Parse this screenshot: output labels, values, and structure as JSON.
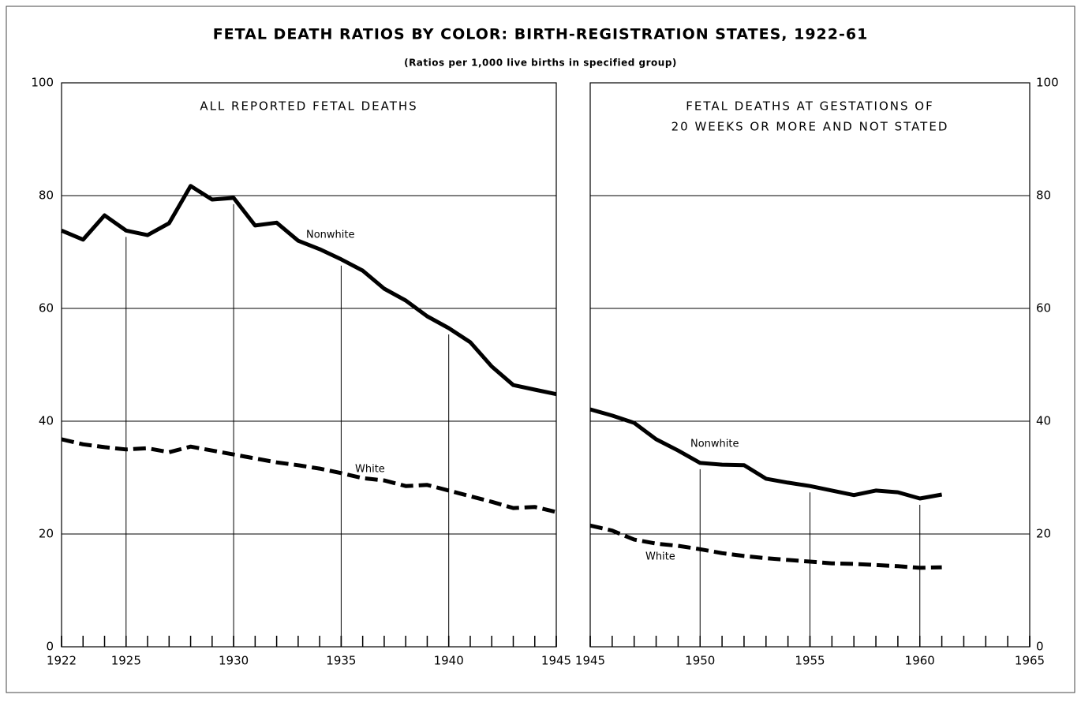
{
  "title": "FETAL DEATH RATIOS BY COLOR: BIRTH-REGISTRATION STATES, 1922-61",
  "subtitle": "(Ratios per 1,000 live births in specified group)",
  "chart_data": [
    {
      "type": "line",
      "title": [
        "ALL REPORTED FETAL DEATHS"
      ],
      "x": [
        1922,
        1923,
        1924,
        1925,
        1926,
        1927,
        1928,
        1929,
        1930,
        1931,
        1932,
        1933,
        1934,
        1935,
        1936,
        1937,
        1938,
        1939,
        1940,
        1941,
        1942,
        1943,
        1944,
        1945
      ],
      "series": [
        {
          "name": "Nonwhite",
          "color": "#000000",
          "dashed": false,
          "values": [
            73.8,
            72.2,
            76.5,
            73.8,
            73.0,
            75.1,
            81.7,
            79.3,
            79.6,
            74.7,
            75.2,
            72.0,
            70.5,
            68.7,
            66.7,
            63.5,
            61.4,
            58.6,
            56.5,
            54.0,
            49.7,
            46.4,
            45.6,
            44.8
          ]
        },
        {
          "name": "White",
          "color": "#000000",
          "dashed": true,
          "values": [
            36.8,
            35.9,
            35.4,
            35.0,
            35.2,
            34.5,
            35.5,
            34.8,
            34.1,
            33.4,
            32.7,
            32.2,
            31.6,
            30.8,
            29.9,
            29.5,
            28.5,
            28.7,
            27.7,
            26.7,
            25.7,
            24.6,
            24.8,
            23.9
          ]
        }
      ],
      "xlim": [
        1922,
        1945
      ],
      "xticks": [
        1922,
        1925,
        1930,
        1935,
        1940,
        1945
      ],
      "xminorticks": [
        1922,
        1923,
        1924,
        1925,
        1926,
        1927,
        1928,
        1929,
        1930,
        1931,
        1932,
        1933,
        1934,
        1935,
        1936,
        1937,
        1938,
        1939,
        1940,
        1941,
        1942,
        1943,
        1944,
        1945
      ],
      "ylim": [
        0,
        100
      ],
      "yticks": [
        0,
        20,
        40,
        60,
        80,
        100
      ],
      "ytick_side": "left",
      "grid": true,
      "droplines": true
    },
    {
      "type": "line",
      "title": [
        "FETAL DEATHS AT GESTATIONS OF",
        "20 WEEKS OR MORE AND NOT STATED"
      ],
      "x": [
        1945,
        1946,
        1947,
        1948,
        1949,
        1950,
        1951,
        1952,
        1953,
        1954,
        1955,
        1956,
        1957,
        1958,
        1959,
        1960,
        1961
      ],
      "series": [
        {
          "name": "Nonwhite",
          "color": "#000000",
          "dashed": false,
          "values": [
            42.1,
            41.0,
            39.7,
            36.8,
            34.8,
            32.6,
            32.3,
            32.2,
            29.8,
            29.1,
            28.5,
            27.7,
            26.9,
            27.7,
            27.4,
            26.3,
            27.0
          ]
        },
        {
          "name": "White",
          "color": "#000000",
          "dashed": true,
          "values": [
            21.5,
            20.6,
            19.0,
            18.3,
            17.9,
            17.3,
            16.6,
            16.1,
            15.7,
            15.4,
            15.1,
            14.8,
            14.7,
            14.5,
            14.3,
            14.0,
            14.1
          ]
        }
      ],
      "xlim": [
        1945,
        1965
      ],
      "xticks": [
        1945,
        1950,
        1955,
        1960,
        1965
      ],
      "xminorticks": [
        1945,
        1946,
        1947,
        1948,
        1949,
        1950,
        1951,
        1952,
        1953,
        1954,
        1955,
        1956,
        1957,
        1958,
        1959,
        1960,
        1961,
        1962,
        1963,
        1964,
        1965
      ],
      "ylim": [
        0,
        100
      ],
      "yticks": [
        0,
        20,
        40,
        60,
        80,
        100
      ],
      "ytick_side": "right",
      "grid": true,
      "droplines": true
    }
  ]
}
